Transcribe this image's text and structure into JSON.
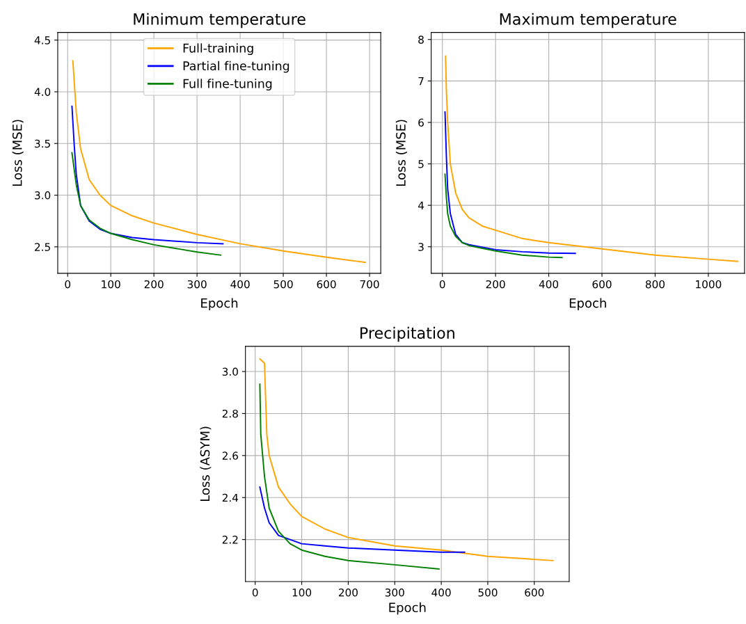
{
  "chart_data": [
    {
      "type": "line",
      "title": "Minimum temperature",
      "xlabel": "Epoch",
      "ylabel": "Loss (MSE)",
      "xlim": [
        -23,
        726
      ],
      "ylim": [
        2.244,
        4.574
      ],
      "xticks": [
        0,
        100,
        200,
        300,
        400,
        500,
        600,
        700
      ],
      "yticks": [
        {
          "value": 2.5,
          "label": "2.5"
        },
        {
          "value": 3.0,
          "label": "3.0"
        },
        {
          "value": 3.5,
          "label": "3.5"
        },
        {
          "value": 4.0,
          "label": "4.0"
        },
        {
          "value": 4.5,
          "label": "4.5"
        }
      ],
      "grid": true,
      "legend": "top center",
      "series": [
        {
          "name": "Full-training",
          "color": "#ffa500",
          "x": [
            12,
            20,
            30,
            50,
            75,
            100,
            150,
            200,
            300,
            400,
            500,
            600,
            690
          ],
          "values": [
            4.3,
            3.8,
            3.45,
            3.15,
            3.0,
            2.9,
            2.8,
            2.73,
            2.62,
            2.53,
            2.46,
            2.4,
            2.35
          ]
        },
        {
          "name": "Partial fine-tuning",
          "color": "#0000ff",
          "x": [
            10,
            15,
            20,
            30,
            50,
            75,
            100,
            150,
            200,
            300,
            360
          ],
          "values": [
            3.86,
            3.5,
            3.2,
            2.9,
            2.75,
            2.67,
            2.63,
            2.59,
            2.57,
            2.54,
            2.53
          ]
        },
        {
          "name": "Full fine-tuning",
          "color": "#008000",
          "x": [
            10,
            20,
            30,
            50,
            75,
            100,
            150,
            200,
            300,
            355
          ],
          "values": [
            3.41,
            3.1,
            2.9,
            2.76,
            2.68,
            2.63,
            2.57,
            2.52,
            2.45,
            2.42
          ]
        }
      ]
    },
    {
      "type": "line",
      "title": "Maximum temperature",
      "xlabel": "Epoch",
      "ylabel": "Loss (MSE)",
      "xlim": [
        -42,
        1136
      ],
      "ylim": [
        2.36,
        8.17
      ],
      "xticks": [
        0,
        200,
        400,
        600,
        800,
        1000
      ],
      "yticks": [
        3,
        4,
        5,
        6,
        7,
        8
      ],
      "grid": true,
      "series": [
        {
          "color": "#ffa500",
          "x": [
            12,
            15,
            20,
            30,
            50,
            75,
            100,
            150,
            200,
            300,
            400,
            600,
            800,
            1000,
            1110
          ],
          "values": [
            7.6,
            6.8,
            6.0,
            5.0,
            4.3,
            3.9,
            3.7,
            3.5,
            3.4,
            3.2,
            3.1,
            2.95,
            2.8,
            2.7,
            2.65
          ]
        },
        {
          "color": "#0000ff",
          "x": [
            10,
            15,
            20,
            30,
            50,
            75,
            100,
            200,
            300,
            400,
            500
          ],
          "values": [
            6.25,
            5.2,
            4.4,
            3.8,
            3.3,
            3.1,
            3.05,
            2.93,
            2.88,
            2.85,
            2.84
          ]
        },
        {
          "color": "#008000",
          "x": [
            10,
            15,
            20,
            30,
            50,
            75,
            100,
            200,
            300,
            400,
            450
          ],
          "values": [
            4.75,
            4.2,
            3.8,
            3.5,
            3.25,
            3.1,
            3.03,
            2.9,
            2.8,
            2.75,
            2.74
          ]
        }
      ]
    },
    {
      "type": "line",
      "title": "Precipitation",
      "xlabel": "Epoch",
      "ylabel": "Loss (ASYM)",
      "xlim": [
        -21,
        675
      ],
      "ylim": [
        2.0,
        3.12
      ],
      "xticks": [
        0,
        100,
        200,
        300,
        400,
        500,
        600
      ],
      "yticks": [
        2.2,
        2.4,
        2.6,
        2.8,
        {
          "value": 3.0,
          "label": "3.0"
        }
      ],
      "grid": true,
      "series": [
        {
          "color": "#ffa500",
          "x": [
            10,
            20,
            22,
            25,
            30,
            50,
            75,
            100,
            150,
            200,
            300,
            400,
            500,
            640
          ],
          "values": [
            3.06,
            3.04,
            2.9,
            2.7,
            2.6,
            2.45,
            2.37,
            2.31,
            2.25,
            2.21,
            2.17,
            2.15,
            2.12,
            2.1
          ]
        },
        {
          "color": "#0000ff",
          "x": [
            10,
            20,
            30,
            50,
            75,
            100,
            150,
            200,
            300,
            400,
            450
          ],
          "values": [
            2.45,
            2.35,
            2.28,
            2.22,
            2.2,
            2.18,
            2.17,
            2.16,
            2.15,
            2.14,
            2.14
          ]
        },
        {
          "color": "#008000",
          "x": [
            10,
            12,
            20,
            30,
            50,
            75,
            100,
            150,
            200,
            300,
            395
          ],
          "values": [
            2.94,
            2.7,
            2.5,
            2.35,
            2.24,
            2.18,
            2.15,
            2.12,
            2.1,
            2.08,
            2.06
          ]
        }
      ]
    }
  ]
}
